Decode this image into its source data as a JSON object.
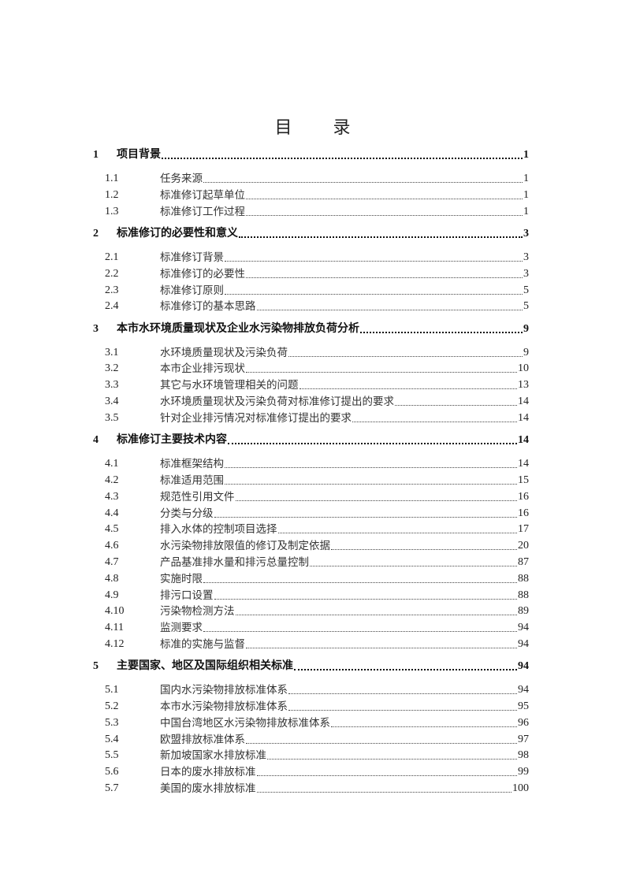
{
  "title": [
    "目",
    "录"
  ],
  "toc": [
    {
      "num": "1",
      "text": "项目背景",
      "page": "1",
      "items": [
        {
          "num": "1.1",
          "text": "任务来源",
          "page": "1"
        },
        {
          "num": "1.2",
          "text": "标准修订起草单位",
          "page": "1"
        },
        {
          "num": "1.3",
          "text": "标准修订工作过程",
          "page": "1"
        }
      ]
    },
    {
      "num": "2",
      "text": "标准修订的必要性和意义",
      "page": "3",
      "items": [
        {
          "num": "2.1",
          "text": "标准修订背景",
          "page": "3"
        },
        {
          "num": "2.2",
          "text": "标准修订的必要性",
          "page": "3"
        },
        {
          "num": "2.3",
          "text": "标准修订原则",
          "page": "5"
        },
        {
          "num": "2.4",
          "text": "标准修订的基本思路",
          "page": "5"
        }
      ]
    },
    {
      "num": "3",
      "text": "本市水环境质量现状及企业水污染物排放负荷分析",
      "page": "9",
      "items": [
        {
          "num": "3.1",
          "text": "水环境质量现状及污染负荷",
          "page": "9"
        },
        {
          "num": "3.2",
          "text": "本市企业排污现状",
          "page": "10"
        },
        {
          "num": "3.3",
          "text": "其它与水环境管理相关的问题",
          "page": "13"
        },
        {
          "num": "3.4",
          "text": "水环境质量现状及污染负荷对标准修订提出的要求",
          "page": "14"
        },
        {
          "num": "3.5",
          "text": "针对企业排污情况对标准修订提出的要求",
          "page": "14"
        }
      ]
    },
    {
      "num": "4",
      "text": "标准修订主要技术内容",
      "page": "14",
      "items": [
        {
          "num": "4.1",
          "text": "标准框架结构",
          "page": "14"
        },
        {
          "num": "4.2",
          "text": "标准适用范围",
          "page": "15"
        },
        {
          "num": "4.3",
          "text": "规范性引用文件",
          "page": "16"
        },
        {
          "num": "4.4",
          "text": "分类与分级",
          "page": "16"
        },
        {
          "num": "4.5",
          "text": "排入水体的控制项目选择",
          "page": "17"
        },
        {
          "num": "4.6",
          "text": "水污染物排放限值的修订及制定依据",
          "page": "20"
        },
        {
          "num": "4.7",
          "text": "产品基准排水量和排污总量控制",
          "page": "87"
        },
        {
          "num": "4.8",
          "text": "实施时限",
          "page": "88"
        },
        {
          "num": "4.9",
          "text": "排污口设置",
          "page": "88"
        },
        {
          "num": "4.10",
          "text": "污染物检测方法",
          "page": "89"
        },
        {
          "num": "4.11",
          "text": "监测要求",
          "page": "94"
        },
        {
          "num": "4.12",
          "text": "标准的实施与监督",
          "page": "94"
        }
      ]
    },
    {
      "num": "5",
      "text": "主要国家、地区及国际组织相关标准",
      "page": "94",
      "items": [
        {
          "num": "5.1",
          "text": "国内水污染物排放标准体系",
          "page": "94"
        },
        {
          "num": "5.2",
          "text": "本市水污染物排放标准体系",
          "page": "95"
        },
        {
          "num": "5.3",
          "text": "中国台湾地区水污染物排放标准体系",
          "page": "96"
        },
        {
          "num": "5.4",
          "text": "欧盟排放标准体系",
          "page": "97"
        },
        {
          "num": "5.5",
          "text": "新加坡国家水排放标准",
          "page": "98"
        },
        {
          "num": "5.6",
          "text": "日本的废水排放标准",
          "page": "99"
        },
        {
          "num": "5.7",
          "text": "美国的废水排放标准",
          "page": "100"
        }
      ]
    }
  ]
}
